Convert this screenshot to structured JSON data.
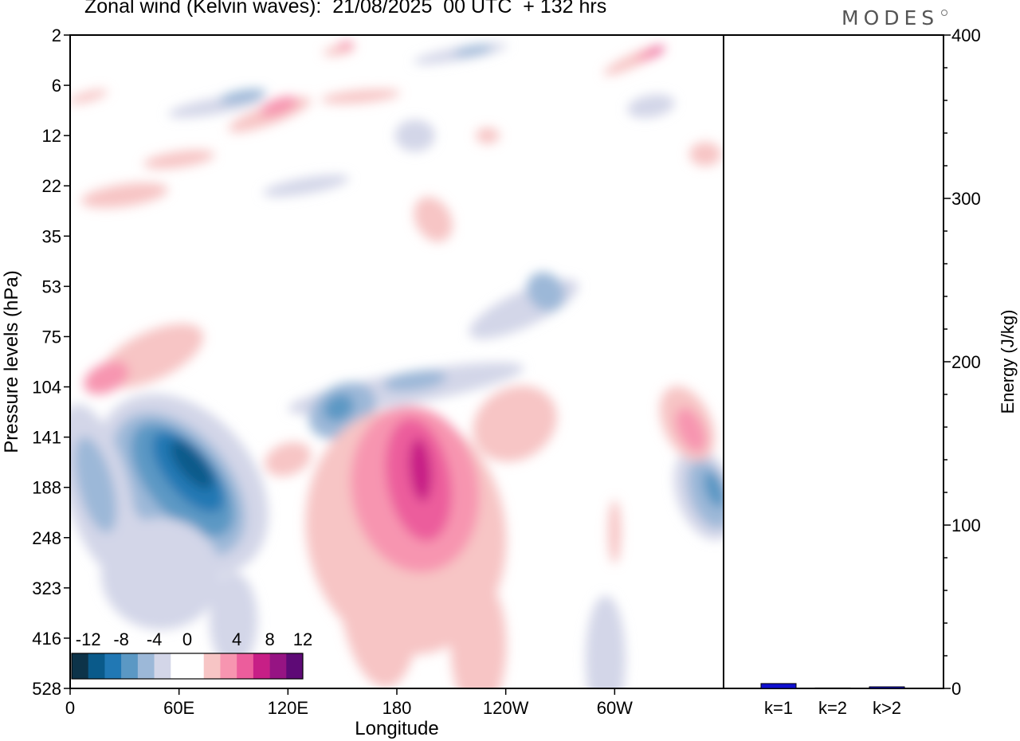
{
  "title": "Zonal wind (Kelvin waves):  21/08/2025  00 UTC  + 132 hrs",
  "brand": "MODES",
  "chart_data": [
    {
      "type": "heatmap",
      "title": "Zonal wind (Kelvin waves):  21/08/2025  00 UTC  + 132 hrs",
      "xlabel": "Longitude",
      "ylabel": "Pressure levels (hPa)",
      "x_ticks": [
        "0",
        "60E",
        "120E",
        "180",
        "120W",
        "60W"
      ],
      "x_range_deg_east": [
        0,
        360
      ],
      "y_ticks": [
        "2",
        "6",
        "12",
        "22",
        "35",
        "53",
        "75",
        "104",
        "141",
        "188",
        "248",
        "323",
        "416",
        "528"
      ],
      "colorbar": {
        "tick_labels": [
          "-12",
          "-8",
          "-4",
          "0",
          "4",
          "8",
          "12"
        ],
        "levels": [
          -16,
          -12,
          -10,
          -8,
          -6,
          -4,
          -2,
          2,
          4,
          6,
          8,
          10,
          12,
          14,
          16
        ],
        "colors": [
          "#0d3349",
          "#0a5a8a",
          "#2178b4",
          "#5b98c4",
          "#9cb8d8",
          "#d3d6e8",
          "#ffffff",
          "#ffffff",
          "#f7c5c5",
          "#f795b0",
          "#ec5d9c",
          "#c71f86",
          "#961483",
          "#5e0a76"
        ]
      },
      "features": [
        {
          "sign": "negative",
          "peak": -12,
          "lon": 65,
          "hPa": 170
        },
        {
          "sign": "negative",
          "peak": -4,
          "lon": 15,
          "hPa": 180
        },
        {
          "sign": "negative",
          "peak": -8,
          "lon": 140,
          "hPa": 120
        },
        {
          "sign": "negative",
          "peak": -6,
          "lon": 250,
          "hPa": 60
        },
        {
          "sign": "negative",
          "peak": -8,
          "lon": 350,
          "hPa": 200
        },
        {
          "sign": "positive",
          "peak": 10,
          "lon": 192,
          "hPa": 175
        },
        {
          "sign": "positive",
          "peak": 6,
          "lon": 25,
          "hPa": 90
        },
        {
          "sign": "positive",
          "peak": 6,
          "lon": 340,
          "hPa": 130
        },
        {
          "sign": "positive",
          "peak": 6,
          "lon": 120,
          "hPa": 9
        }
      ]
    },
    {
      "type": "bar",
      "categories": [
        "k=1",
        "k=2",
        "k>2"
      ],
      "values": [
        3,
        0.3,
        1
      ],
      "ylabel": "Energy (J/kg)",
      "ylim": [
        0,
        400
      ],
      "y_ticks": [
        "0",
        "100",
        "200",
        "300",
        "400"
      ],
      "bar_color": "#1010d0"
    }
  ]
}
